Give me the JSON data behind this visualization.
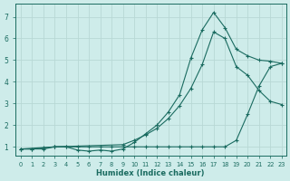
{
  "xlabel": "Humidex (Indice chaleur)",
  "bg_color": "#ceecea",
  "grid_color": "#b8d8d5",
  "line_color": "#1a6b60",
  "xlim": [
    -0.5,
    23.4
  ],
  "ylim": [
    0.6,
    7.6
  ],
  "xticks": [
    0,
    1,
    2,
    3,
    4,
    5,
    6,
    7,
    8,
    9,
    10,
    11,
    12,
    13,
    14,
    15,
    16,
    17,
    18,
    19,
    20,
    21,
    22,
    23
  ],
  "yticks": [
    1,
    2,
    3,
    4,
    5,
    6,
    7
  ],
  "line1_x": [
    0,
    1,
    2,
    3,
    4,
    5,
    6,
    7,
    8,
    9,
    10,
    11,
    12,
    13,
    14,
    15,
    16,
    17,
    18,
    19,
    20,
    21,
    22,
    23
  ],
  "line1_y": [
    0.9,
    0.9,
    0.9,
    1.0,
    1.0,
    1.0,
    1.0,
    1.0,
    1.0,
    1.0,
    1.0,
    1.0,
    1.0,
    1.0,
    1.0,
    1.0,
    1.0,
    1.0,
    1.0,
    1.3,
    2.5,
    3.8,
    4.7,
    4.85
  ],
  "line2_x": [
    0,
    1,
    2,
    3,
    4,
    5,
    6,
    7,
    8,
    9,
    10,
    11,
    12,
    13,
    14,
    15,
    16,
    17,
    18,
    19,
    20,
    21,
    22,
    23
  ],
  "line2_y": [
    0.9,
    0.9,
    0.95,
    1.0,
    1.0,
    0.85,
    0.8,
    0.85,
    0.8,
    0.9,
    1.2,
    1.6,
    2.0,
    2.6,
    3.4,
    5.1,
    6.4,
    7.2,
    6.5,
    5.5,
    5.2,
    5.0,
    4.95,
    4.85
  ],
  "line3_x": [
    0,
    3,
    9,
    10,
    11,
    12,
    13,
    14,
    15,
    16,
    17,
    18,
    19,
    20,
    21,
    22,
    23
  ],
  "line3_y": [
    0.9,
    1.0,
    1.1,
    1.3,
    1.55,
    1.85,
    2.3,
    2.9,
    3.7,
    4.8,
    6.3,
    6.0,
    4.7,
    4.3,
    3.6,
    3.1,
    2.95
  ]
}
